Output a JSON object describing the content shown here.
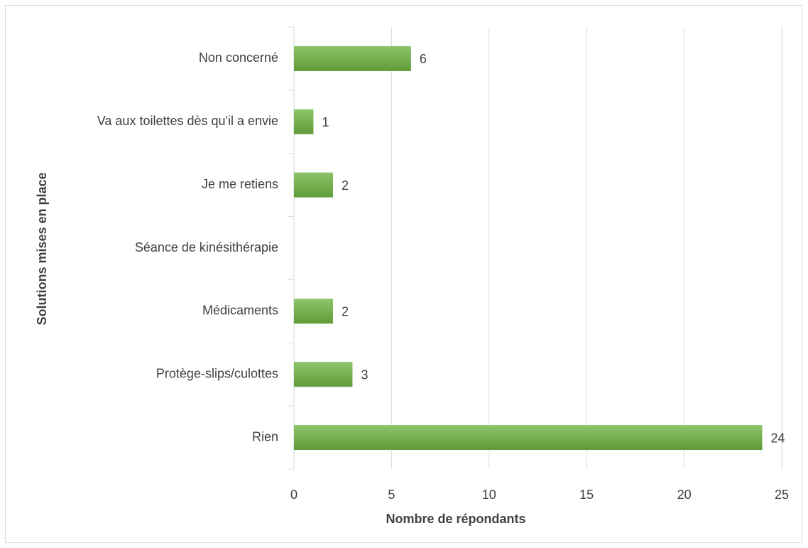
{
  "chart_data": {
    "type": "barh",
    "categories": [
      "Non concerné",
      "Va aux toilettes dès qu'il a envie",
      "Je me retiens",
      "Séance de kinésithérapie",
      "Médicaments",
      "Protège-slips/culottes",
      "Rien"
    ],
    "values": [
      6,
      1,
      2,
      null,
      2,
      3,
      24
    ],
    "color": "#70ad47",
    "xlim": [
      0,
      25
    ],
    "xticks": [
      0,
      5,
      10,
      15,
      20,
      25
    ],
    "xlabel": "Nombre de répondants",
    "ylabel": "Solutions mises en place",
    "grid": true
  }
}
